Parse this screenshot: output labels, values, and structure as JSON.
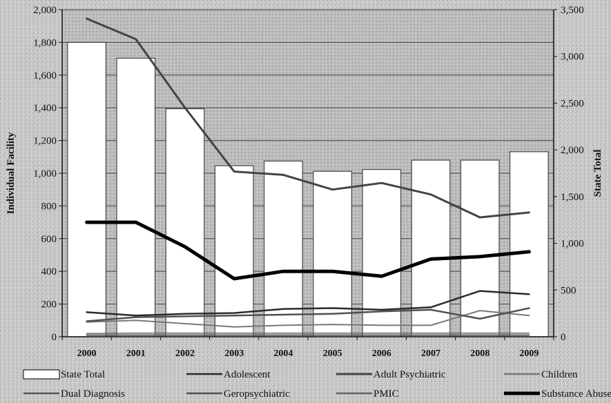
{
  "chart_data": {
    "type": "bar+line",
    "categories": [
      "2000",
      "2001",
      "2002",
      "2003",
      "2004",
      "2005",
      "2006",
      "2007",
      "2008",
      "2009"
    ],
    "y_left": {
      "label": "Individual Facility",
      "range": [
        0,
        2000
      ],
      "ticks": [
        "0",
        "200",
        "400",
        "600",
        "800",
        "1,000",
        "1,200",
        "1,400",
        "1,600",
        "1,800",
        "2,000"
      ]
    },
    "y_right": {
      "label": "State Total",
      "range": [
        0,
        3500
      ],
      "ticks": [
        "0",
        "500",
        "1,000",
        "1,500",
        "2,000",
        "2,500",
        "3,000",
        "3,500"
      ]
    },
    "bars": {
      "name": "State Total",
      "axis": "right",
      "values": [
        3150,
        2980,
        2440,
        1830,
        1880,
        1770,
        1790,
        1890,
        1890,
        1980
      ]
    },
    "series": [
      {
        "name": "Adolescent",
        "axis": "left",
        "color": "#2a2a2a",
        "width": 2.5,
        "values": [
          150,
          130,
          140,
          145,
          170,
          175,
          165,
          180,
          280,
          260
        ]
      },
      {
        "name": "Adult Psychiatric",
        "axis": "left",
        "color": "#444444",
        "width": 3,
        "values": [
          1945,
          1820,
          1400,
          1010,
          990,
          900,
          940,
          870,
          730,
          760
        ]
      },
      {
        "name": "Children",
        "axis": "left",
        "color": "#777777",
        "width": 2,
        "values": [
          90,
          100,
          80,
          60,
          70,
          75,
          70,
          70,
          160,
          130
        ]
      },
      {
        "name": "Dual Diagnosis",
        "axis": "left",
        "color": "#555555",
        "width": 2,
        "values": [
          10,
          10,
          10,
          10,
          10,
          10,
          10,
          10,
          10,
          10
        ]
      },
      {
        "name": "Geropsychiatric",
        "axis": "left",
        "color": "#505050",
        "width": 2.5,
        "values": [
          95,
          120,
          125,
          130,
          135,
          140,
          155,
          165,
          110,
          175
        ]
      },
      {
        "name": "PMIC",
        "axis": "left",
        "color": "#666666",
        "width": 1.5,
        "values": [
          20,
          22,
          22,
          22,
          22,
          22,
          22,
          22,
          22,
          22
        ]
      },
      {
        "name": "Substance Abuse",
        "axis": "left",
        "color": "#000000",
        "width": 5,
        "values": [
          700,
          700,
          550,
          355,
          400,
          400,
          370,
          475,
          490,
          520
        ]
      }
    ],
    "legend": [
      "State Total",
      "Adolescent",
      "Adult Psychiatric",
      "Children",
      "Dual Diagnosis",
      "Geropsychiatric",
      "PMIC",
      "Substance Abuse"
    ],
    "legend_position": "bottom",
    "grid": true
  }
}
